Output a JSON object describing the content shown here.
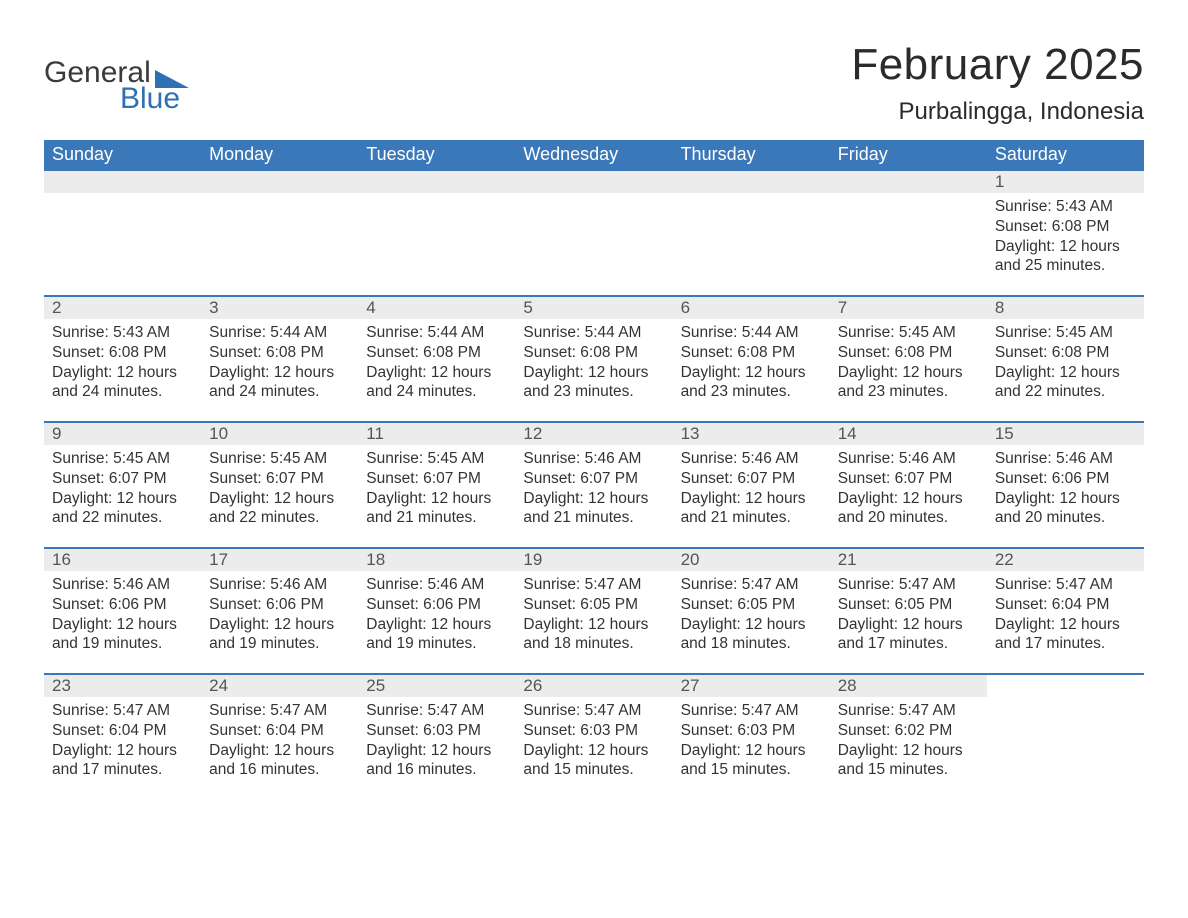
{
  "logo": {
    "word1": "General",
    "word2": "Blue",
    "brand_color": "#2f6fb3"
  },
  "title": "February 2025",
  "location": "Purbalingga, Indonesia",
  "header_color": "#3a78b9",
  "band_color": "#ececec",
  "weekdays": [
    "Sunday",
    "Monday",
    "Tuesday",
    "Wednesday",
    "Thursday",
    "Friday",
    "Saturday"
  ],
  "weeks": [
    [
      {
        "n": "",
        "sr": "",
        "ss": "",
        "dl": ""
      },
      {
        "n": "",
        "sr": "",
        "ss": "",
        "dl": ""
      },
      {
        "n": "",
        "sr": "",
        "ss": "",
        "dl": ""
      },
      {
        "n": "",
        "sr": "",
        "ss": "",
        "dl": ""
      },
      {
        "n": "",
        "sr": "",
        "ss": "",
        "dl": ""
      },
      {
        "n": "",
        "sr": "",
        "ss": "",
        "dl": ""
      },
      {
        "n": "1",
        "sr": "Sunrise: 5:43 AM",
        "ss": "Sunset: 6:08 PM",
        "dl": "Daylight: 12 hours and 25 minutes."
      }
    ],
    [
      {
        "n": "2",
        "sr": "Sunrise: 5:43 AM",
        "ss": "Sunset: 6:08 PM",
        "dl": "Daylight: 12 hours and 24 minutes."
      },
      {
        "n": "3",
        "sr": "Sunrise: 5:44 AM",
        "ss": "Sunset: 6:08 PM",
        "dl": "Daylight: 12 hours and 24 minutes."
      },
      {
        "n": "4",
        "sr": "Sunrise: 5:44 AM",
        "ss": "Sunset: 6:08 PM",
        "dl": "Daylight: 12 hours and 24 minutes."
      },
      {
        "n": "5",
        "sr": "Sunrise: 5:44 AM",
        "ss": "Sunset: 6:08 PM",
        "dl": "Daylight: 12 hours and 23 minutes."
      },
      {
        "n": "6",
        "sr": "Sunrise: 5:44 AM",
        "ss": "Sunset: 6:08 PM",
        "dl": "Daylight: 12 hours and 23 minutes."
      },
      {
        "n": "7",
        "sr": "Sunrise: 5:45 AM",
        "ss": "Sunset: 6:08 PM",
        "dl": "Daylight: 12 hours and 23 minutes."
      },
      {
        "n": "8",
        "sr": "Sunrise: 5:45 AM",
        "ss": "Sunset: 6:08 PM",
        "dl": "Daylight: 12 hours and 22 minutes."
      }
    ],
    [
      {
        "n": "9",
        "sr": "Sunrise: 5:45 AM",
        "ss": "Sunset: 6:07 PM",
        "dl": "Daylight: 12 hours and 22 minutes."
      },
      {
        "n": "10",
        "sr": "Sunrise: 5:45 AM",
        "ss": "Sunset: 6:07 PM",
        "dl": "Daylight: 12 hours and 22 minutes."
      },
      {
        "n": "11",
        "sr": "Sunrise: 5:45 AM",
        "ss": "Sunset: 6:07 PM",
        "dl": "Daylight: 12 hours and 21 minutes."
      },
      {
        "n": "12",
        "sr": "Sunrise: 5:46 AM",
        "ss": "Sunset: 6:07 PM",
        "dl": "Daylight: 12 hours and 21 minutes."
      },
      {
        "n": "13",
        "sr": "Sunrise: 5:46 AM",
        "ss": "Sunset: 6:07 PM",
        "dl": "Daylight: 12 hours and 21 minutes."
      },
      {
        "n": "14",
        "sr": "Sunrise: 5:46 AM",
        "ss": "Sunset: 6:07 PM",
        "dl": "Daylight: 12 hours and 20 minutes."
      },
      {
        "n": "15",
        "sr": "Sunrise: 5:46 AM",
        "ss": "Sunset: 6:06 PM",
        "dl": "Daylight: 12 hours and 20 minutes."
      }
    ],
    [
      {
        "n": "16",
        "sr": "Sunrise: 5:46 AM",
        "ss": "Sunset: 6:06 PM",
        "dl": "Daylight: 12 hours and 19 minutes."
      },
      {
        "n": "17",
        "sr": "Sunrise: 5:46 AM",
        "ss": "Sunset: 6:06 PM",
        "dl": "Daylight: 12 hours and 19 minutes."
      },
      {
        "n": "18",
        "sr": "Sunrise: 5:46 AM",
        "ss": "Sunset: 6:06 PM",
        "dl": "Daylight: 12 hours and 19 minutes."
      },
      {
        "n": "19",
        "sr": "Sunrise: 5:47 AM",
        "ss": "Sunset: 6:05 PM",
        "dl": "Daylight: 12 hours and 18 minutes."
      },
      {
        "n": "20",
        "sr": "Sunrise: 5:47 AM",
        "ss": "Sunset: 6:05 PM",
        "dl": "Daylight: 12 hours and 18 minutes."
      },
      {
        "n": "21",
        "sr": "Sunrise: 5:47 AM",
        "ss": "Sunset: 6:05 PM",
        "dl": "Daylight: 12 hours and 17 minutes."
      },
      {
        "n": "22",
        "sr": "Sunrise: 5:47 AM",
        "ss": "Sunset: 6:04 PM",
        "dl": "Daylight: 12 hours and 17 minutes."
      }
    ],
    [
      {
        "n": "23",
        "sr": "Sunrise: 5:47 AM",
        "ss": "Sunset: 6:04 PM",
        "dl": "Daylight: 12 hours and 17 minutes."
      },
      {
        "n": "24",
        "sr": "Sunrise: 5:47 AM",
        "ss": "Sunset: 6:04 PM",
        "dl": "Daylight: 12 hours and 16 minutes."
      },
      {
        "n": "25",
        "sr": "Sunrise: 5:47 AM",
        "ss": "Sunset: 6:03 PM",
        "dl": "Daylight: 12 hours and 16 minutes."
      },
      {
        "n": "26",
        "sr": "Sunrise: 5:47 AM",
        "ss": "Sunset: 6:03 PM",
        "dl": "Daylight: 12 hours and 15 minutes."
      },
      {
        "n": "27",
        "sr": "Sunrise: 5:47 AM",
        "ss": "Sunset: 6:03 PM",
        "dl": "Daylight: 12 hours and 15 minutes."
      },
      {
        "n": "28",
        "sr": "Sunrise: 5:47 AM",
        "ss": "Sunset: 6:02 PM",
        "dl": "Daylight: 12 hours and 15 minutes."
      },
      {
        "n": "",
        "sr": "",
        "ss": "",
        "dl": ""
      }
    ]
  ]
}
